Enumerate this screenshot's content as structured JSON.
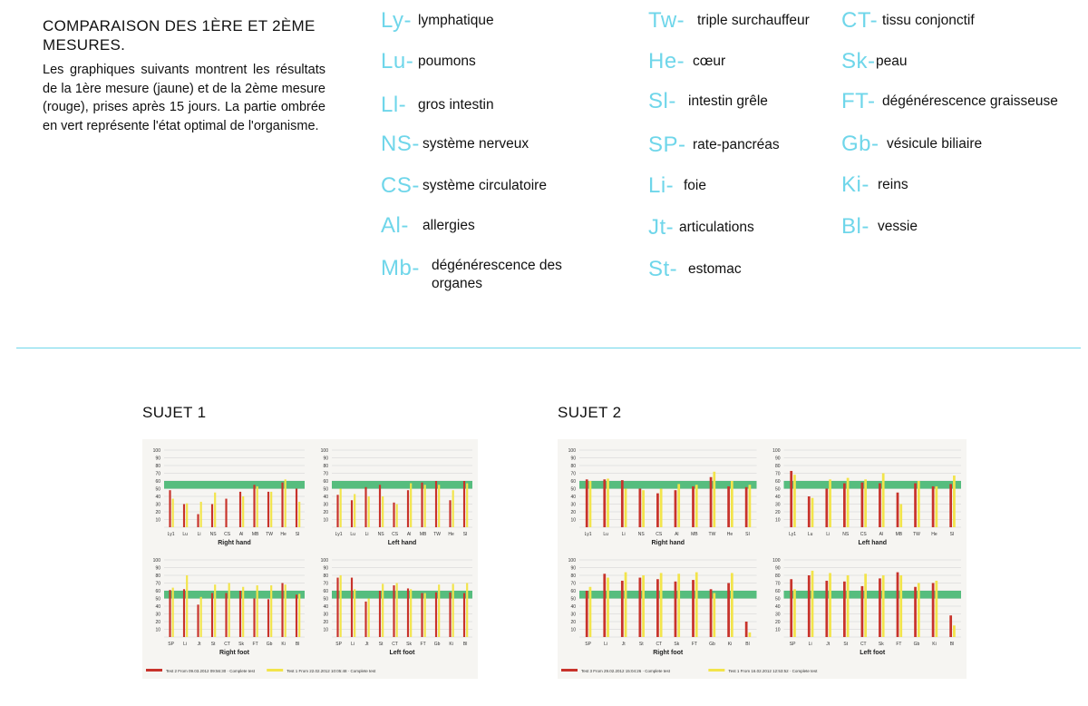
{
  "intro": {
    "title": "COMPARAISON DES 1ÈRE ET 2ÈME MESURES.",
    "body": "Les graphiques suivants montrent les résultats de la 1ère mesure (jaune) et de la 2ème mesure (rouge), prises après 15 jours. La partie ombrée en vert représente l'état optimal de l'organisme."
  },
  "legend": {
    "col1": [
      {
        "abbr": "Ly-",
        "desc": "lymphatique"
      },
      {
        "abbr": "Lu-",
        "desc": "poumons"
      },
      {
        "abbr": "Ll-",
        "desc": "gros intestin"
      },
      {
        "abbr": "NS-",
        "desc": "système nerveux"
      },
      {
        "abbr": "CS-",
        "desc": "système circulatoire"
      },
      {
        "abbr": "Al-",
        "desc": "allergies"
      },
      {
        "abbr": "Mb-",
        "desc": "dégénérescence des organes"
      }
    ],
    "col2": [
      {
        "abbr": "Tw-",
        "desc": "triple surchauffeur"
      },
      {
        "abbr": "He-",
        "desc": "cœur"
      },
      {
        "abbr": "Sl-",
        "desc": "intestin grêle"
      },
      {
        "abbr": "SP-",
        "desc": "rate-pancréas"
      },
      {
        "abbr": "Li-",
        "desc": "foie"
      },
      {
        "abbr": "Jt-",
        "desc": "articulations"
      },
      {
        "abbr": "St-",
        "desc": "estomac"
      }
    ],
    "col3": [
      {
        "abbr": "CT-",
        "desc": "tissu conjonctif"
      },
      {
        "abbr": "Sk-",
        "desc": "peau"
      },
      {
        "abbr": "FT-",
        "desc": "dégénérescence graisseuse"
      },
      {
        "abbr": "Gb-",
        "desc": "vésicule biliaire"
      },
      {
        "abbr": "Ki-",
        "desc": "reins"
      },
      {
        "abbr": "Bl-",
        "desc": "vessie"
      }
    ]
  },
  "subjects": [
    {
      "title": "SUJET 1"
    },
    {
      "title": "SUJET 2"
    }
  ],
  "colors": {
    "accent_cyan": "#6fd6ea",
    "red_series": "#c8332b",
    "yellow_series": "#f2e44a",
    "optimal_band": "#39b36a"
  },
  "chart_data": [
    {
      "type": "bar",
      "subject": "SUJET 1",
      "panels": [
        {
          "title": "Right hand",
          "categories": [
            "Ly1",
            "Lu",
            "Li",
            "NS",
            "CS",
            "Al",
            "MB",
            "TW",
            "He",
            "SI"
          ],
          "red": [
            48,
            30,
            17,
            30,
            37,
            46,
            55,
            46,
            58,
            50
          ],
          "yellow": [
            37,
            31,
            33,
            45,
            0,
            40,
            53,
            46,
            62,
            33
          ],
          "ylim": [
            0,
            100
          ],
          "optimal_band": [
            50,
            60
          ]
        },
        {
          "title": "Left hand",
          "categories": [
            "Ly1",
            "Lu",
            "Li",
            "NS",
            "CS",
            "Al",
            "MB",
            "TW",
            "He",
            "SI"
          ],
          "red": [
            42,
            35,
            52,
            55,
            32,
            48,
            58,
            60,
            35,
            60
          ],
          "yellow": [
            50,
            43,
            40,
            40,
            30,
            57,
            55,
            55,
            48,
            57
          ],
          "ylim": [
            0,
            100
          ],
          "optimal_band": [
            50,
            60
          ]
        },
        {
          "title": "Right foot",
          "categories": [
            "SP",
            "Li",
            "Jt",
            "St",
            "CT",
            "Sk",
            "FT",
            "Gb",
            "Ki",
            "Bl"
          ],
          "red": [
            61,
            62,
            42,
            57,
            57,
            60,
            50,
            49,
            70,
            55
          ],
          "yellow": [
            64,
            80,
            52,
            68,
            70,
            65,
            67,
            67,
            68,
            56
          ],
          "ylim": [
            0,
            100
          ],
          "optimal_band": [
            50,
            60
          ]
        },
        {
          "title": "Left foot",
          "categories": [
            "SP",
            "Li",
            "Jt",
            "St",
            "CT",
            "Sk",
            "FT",
            "Gb",
            "Ki",
            "Bl"
          ],
          "red": [
            77,
            77,
            46,
            60,
            67,
            63,
            57,
            58,
            58,
            57
          ],
          "yellow": [
            80,
            62,
            50,
            69,
            70,
            62,
            57,
            68,
            69,
            70
          ],
          "ylim": [
            0,
            100
          ],
          "optimal_band": [
            50,
            60
          ]
        }
      ],
      "legend": [
        {
          "color": "red",
          "text": "Test 2 From 09.03.2012 09:56:30 · Complete test"
        },
        {
          "color": "yellow",
          "text": "Test 1 From 22.02.2012 10:05:48 · Complete test"
        }
      ]
    },
    {
      "type": "bar",
      "subject": "SUJET 2",
      "panels": [
        {
          "title": "Right hand",
          "categories": [
            "Ly1",
            "Lu",
            "Li",
            "NS",
            "CS",
            "Al",
            "MB",
            "TW",
            "He",
            "SI"
          ],
          "red": [
            62,
            62,
            61,
            50,
            44,
            48,
            53,
            65,
            53,
            52
          ],
          "yellow": [
            60,
            63,
            50,
            48,
            50,
            56,
            55,
            72,
            60,
            55
          ],
          "ylim": [
            0,
            100
          ],
          "optimal_band": [
            50,
            60
          ]
        },
        {
          "title": "Left hand",
          "categories": [
            "Ly1",
            "Lu",
            "Li",
            "NS",
            "CS",
            "Al",
            "MB",
            "TW",
            "He",
            "SI"
          ],
          "red": [
            73,
            40,
            50,
            57,
            58,
            57,
            45,
            57,
            53,
            56
          ],
          "yellow": [
            68,
            38,
            62,
            64,
            62,
            70,
            30,
            60,
            53,
            67
          ],
          "ylim": [
            0,
            100
          ],
          "optimal_band": [
            50,
            60
          ]
        },
        {
          "title": "Right foot",
          "categories": [
            "SP",
            "Li",
            "Jt",
            "St",
            "CT",
            "Sk",
            "FT",
            "Gb",
            "Ki",
            "Bl"
          ],
          "red": [
            60,
            82,
            73,
            77,
            75,
            72,
            74,
            62,
            70,
            20
          ],
          "yellow": [
            65,
            77,
            84,
            80,
            83,
            82,
            84,
            57,
            83,
            6
          ],
          "ylim": [
            0,
            100
          ],
          "optimal_band": [
            50,
            60
          ]
        },
        {
          "title": "Left foot",
          "categories": [
            "SP",
            "Li",
            "Jt",
            "St",
            "CT",
            "Sk",
            "FT",
            "Gb",
            "Ki",
            "Bl"
          ],
          "red": [
            75,
            80,
            73,
            72,
            66,
            76,
            84,
            65,
            70,
            28
          ],
          "yellow": [
            62,
            86,
            83,
            80,
            82,
            80,
            80,
            70,
            73,
            15
          ],
          "ylim": [
            0,
            100
          ],
          "optimal_band": [
            50,
            60
          ]
        }
      ],
      "legend": [
        {
          "color": "red",
          "text": "Test 3 From 29.02.2012 15:04:26 · Complete test"
        },
        {
          "color": "yellow",
          "text": "Test 1 From 16.02.2012 12:53:52 · Complete test"
        }
      ]
    }
  ]
}
